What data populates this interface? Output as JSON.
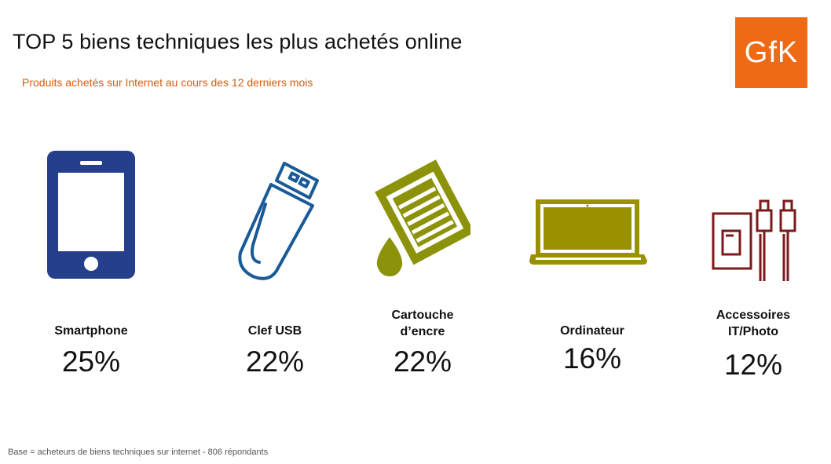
{
  "header": {
    "title": "TOP 5 biens techniques les plus achetés online",
    "subtitle": "Produits achetés sur Internet  au cours des 12 derniers mois",
    "logo_text": "GfK"
  },
  "items": [
    {
      "label": "Smartphone",
      "value": "25%",
      "icon": "smartphone-icon",
      "color": "#253f8c"
    },
    {
      "label": "Clef USB",
      "value": "22%",
      "icon": "usb-key-icon",
      "color": "#1a5a96"
    },
    {
      "label": "Cartouche\nd’encre",
      "value": "22%",
      "icon": "ink-cartridge-icon",
      "color": "#8c930b"
    },
    {
      "label": "Ordinateur",
      "value": "16%",
      "icon": "laptop-icon",
      "color": "#9a9100"
    },
    {
      "label": "Accessoires\nIT/Photo",
      "value": "12%",
      "icon": "accessories-icon",
      "color": "#7a1a1a"
    }
  ],
  "footer": "Base = acheteurs de biens techniques sur internet - 806 répondants"
}
